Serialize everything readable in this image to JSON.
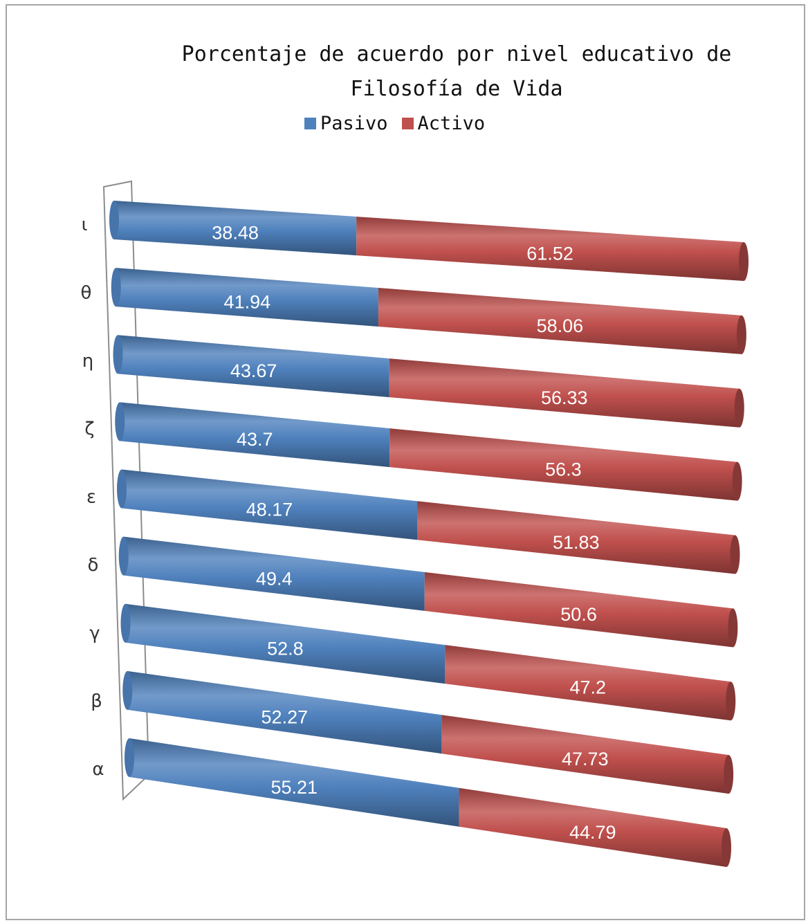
{
  "chart_data": {
    "type": "bar",
    "orientation": "horizontal",
    "stacked": true,
    "style": "3d-cylinder",
    "title": "Porcentaje de acuerdo por nivel educativo de\nFilosofía de Vida",
    "legend_position": "top",
    "grid": false,
    "xlim": [
      0,
      100
    ],
    "categories": [
      "ι",
      "θ",
      "η",
      "ζ",
      "ε",
      "δ",
      "γ",
      "β",
      "α"
    ],
    "series": [
      {
        "name": "Pasivo",
        "color": "#4f81bd",
        "values": [
          38.48,
          41.94,
          43.67,
          43.7,
          48.17,
          49.4,
          52.8,
          52.27,
          55.21
        ],
        "labels": [
          "38.48",
          "41.94",
          "43.67",
          "43.7",
          "48.17",
          "49.4",
          "52.8",
          "52.27",
          "55.21"
        ]
      },
      {
        "name": "Activo",
        "color": "#c0504d",
        "values": [
          61.52,
          58.06,
          56.33,
          56.3,
          51.83,
          50.6,
          47.2,
          47.73,
          44.79
        ],
        "labels": [
          "61.52",
          "58.06",
          "56.33",
          "56.3",
          "51.83",
          "50.6",
          "47.2",
          "47.73",
          "44.79"
        ]
      }
    ]
  }
}
